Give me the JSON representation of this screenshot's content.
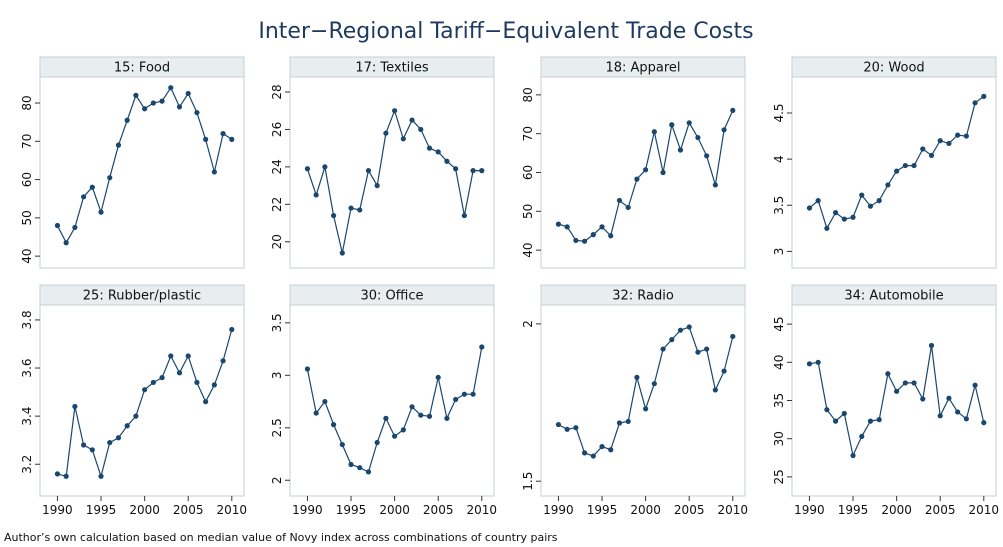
{
  "title": "Inter−Regional Tariff−Equivalent Trade Costs",
  "note": "Author’s own calculation based on median value of Novy index across combinations of country pairs",
  "chart_data": [
    {
      "type": "line",
      "title": "15: Food",
      "color": "#1a476f",
      "x": [
        1990,
        1991,
        1992,
        1993,
        1994,
        1995,
        1996,
        1997,
        1998,
        1999,
        2000,
        2001,
        2002,
        2003,
        2004,
        2005,
        2006,
        2007,
        2008,
        2009,
        2010
      ],
      "values": [
        48,
        43.5,
        47.5,
        55.5,
        58,
        51.5,
        60.5,
        69,
        75.5,
        82,
        78.5,
        80,
        80.5,
        84,
        79,
        82.5,
        77.5,
        70.5,
        62,
        72,
        70.5
      ],
      "xlim": [
        1988,
        2011.4
      ],
      "ylim": [
        36.9,
        86.8
      ],
      "yticks": [
        40,
        50,
        60,
        70,
        80
      ]
    },
    {
      "type": "line",
      "title": "17: Textiles",
      "color": "#1a476f",
      "x": [
        1990,
        1991,
        1992,
        1993,
        1994,
        1995,
        1996,
        1997,
        1998,
        1999,
        2000,
        2001,
        2002,
        2003,
        2004,
        2005,
        2006,
        2007,
        2008,
        2009,
        2010
      ],
      "values": [
        23.9,
        22.5,
        24.0,
        21.4,
        19.4,
        21.8,
        21.7,
        23.8,
        23.0,
        25.8,
        27.0,
        25.5,
        26.5,
        26.0,
        25.0,
        24.8,
        24.3,
        23.9,
        21.4,
        23.8,
        23.8
      ],
      "xlim": [
        1988,
        2011.4
      ],
      "ylim": [
        18.6,
        28.8
      ],
      "yticks": [
        20,
        22,
        24,
        26,
        28
      ]
    },
    {
      "type": "line",
      "title": "18: Apparel",
      "color": "#1a476f",
      "x": [
        1990,
        1991,
        1992,
        1993,
        1994,
        1995,
        1996,
        1997,
        1998,
        1999,
        2000,
        2001,
        2002,
        2003,
        2004,
        2005,
        2006,
        2007,
        2008,
        2009,
        2010
      ],
      "values": [
        46.7,
        46.0,
        42.5,
        42.3,
        44.0,
        46.0,
        43.7,
        52.8,
        51.0,
        58.3,
        60.7,
        70.5,
        60.0,
        72.3,
        65.8,
        72.8,
        69.0,
        64.3,
        56.8,
        71.0,
        76.0
      ],
      "xlim": [
        1988,
        2011.4
      ],
      "ylim": [
        35.4,
        84.6
      ],
      "yticks": [
        40,
        50,
        60,
        70,
        80
      ]
    },
    {
      "type": "line",
      "title": "20: Wood",
      "color": "#1a476f",
      "x": [
        1990,
        1991,
        1992,
        1993,
        1994,
        1995,
        1996,
        1997,
        1998,
        1999,
        2000,
        2001,
        2002,
        2003,
        2004,
        2005,
        2006,
        2007,
        2008,
        2009,
        2010
      ],
      "values": [
        3.47,
        3.55,
        3.25,
        3.42,
        3.35,
        3.37,
        3.61,
        3.49,
        3.55,
        3.72,
        3.87,
        3.93,
        3.93,
        4.11,
        4.04,
        4.2,
        4.17,
        4.26,
        4.25,
        4.61,
        4.68
      ],
      "xlim": [
        1988,
        2011.4
      ],
      "ylim": [
        2.82,
        4.89
      ],
      "yticks": [
        3,
        3.5,
        4,
        4.5
      ]
    },
    {
      "type": "line",
      "title": "25: Rubber/plastic",
      "color": "#1a476f",
      "x": [
        1990,
        1991,
        1992,
        1993,
        1994,
        1995,
        1996,
        1997,
        1998,
        1999,
        2000,
        2001,
        2002,
        2003,
        2004,
        2005,
        2006,
        2007,
        2008,
        2009,
        2010
      ],
      "values": [
        3.16,
        3.15,
        3.44,
        3.28,
        3.26,
        3.15,
        3.29,
        3.31,
        3.36,
        3.4,
        3.51,
        3.54,
        3.56,
        3.65,
        3.58,
        3.65,
        3.54,
        3.46,
        3.53,
        3.63,
        3.76
      ],
      "xlim": [
        1988,
        2011.4
      ],
      "ylim": [
        3.068,
        3.862
      ],
      "yticks": [
        3.2,
        3.4,
        3.6,
        3.8
      ],
      "xticks": [
        1990,
        1995,
        2000,
        2005,
        2010
      ]
    },
    {
      "type": "line",
      "title": "30: Office",
      "color": "#1a476f",
      "x": [
        1990,
        1991,
        1992,
        1993,
        1994,
        1995,
        1996,
        1997,
        1998,
        1999,
        2000,
        2001,
        2002,
        2003,
        2004,
        2005,
        2006,
        2007,
        2008,
        2009,
        2010
      ],
      "values": [
        3.06,
        2.64,
        2.75,
        2.53,
        2.34,
        2.15,
        2.12,
        2.08,
        2.36,
        2.59,
        2.42,
        2.48,
        2.7,
        2.62,
        2.61,
        2.98,
        2.59,
        2.77,
        2.82,
        2.82,
        3.27
      ],
      "xlim": [
        1988,
        2011.4
      ],
      "ylim": [
        1.85,
        3.67
      ],
      "yticks": [
        2,
        2.5,
        3,
        3.5
      ],
      "xticks": [
        1990,
        1995,
        2000,
        2005,
        2010
      ]
    },
    {
      "type": "line",
      "title": "32: Radio",
      "color": "#1a476f",
      "x": [
        1990,
        1991,
        1992,
        1993,
        1994,
        1995,
        1996,
        1997,
        1998,
        1999,
        2000,
        2001,
        2002,
        2003,
        2004,
        2005,
        2006,
        2007,
        2008,
        2009,
        2010
      ],
      "values": [
        1.68,
        1.665,
        1.67,
        1.59,
        1.58,
        1.61,
        1.6,
        1.685,
        1.69,
        1.83,
        1.73,
        1.81,
        1.92,
        1.95,
        1.98,
        1.99,
        1.91,
        1.92,
        1.79,
        1.85,
        1.96
      ],
      "xlim": [
        1988,
        2011.4
      ],
      "ylim": [
        1.453,
        2.06
      ],
      "yticks": [
        1.5,
        2
      ],
      "xticks": [
        1990,
        1995,
        2000,
        2005,
        2010
      ]
    },
    {
      "type": "line",
      "title": "34: Automobile",
      "color": "#1a476f",
      "x": [
        1990,
        1991,
        1992,
        1993,
        1994,
        1995,
        1996,
        1997,
        1998,
        1999,
        2000,
        2001,
        2002,
        2003,
        2004,
        2005,
        2006,
        2007,
        2008,
        2009,
        2010
      ],
      "values": [
        39.8,
        40.0,
        33.8,
        32.3,
        33.3,
        27.8,
        30.3,
        32.3,
        32.5,
        38.5,
        36.2,
        37.3,
        37.3,
        35.2,
        42.2,
        33.0,
        35.3,
        33.5,
        32.6,
        37.0,
        32.1
      ],
      "xlim": [
        1988,
        2011.4
      ],
      "ylim": [
        22.5,
        47.5
      ],
      "yticks": [
        25,
        30,
        35,
        40,
        45
      ],
      "xticks": [
        1990,
        1995,
        2000,
        2005,
        2010
      ]
    }
  ]
}
